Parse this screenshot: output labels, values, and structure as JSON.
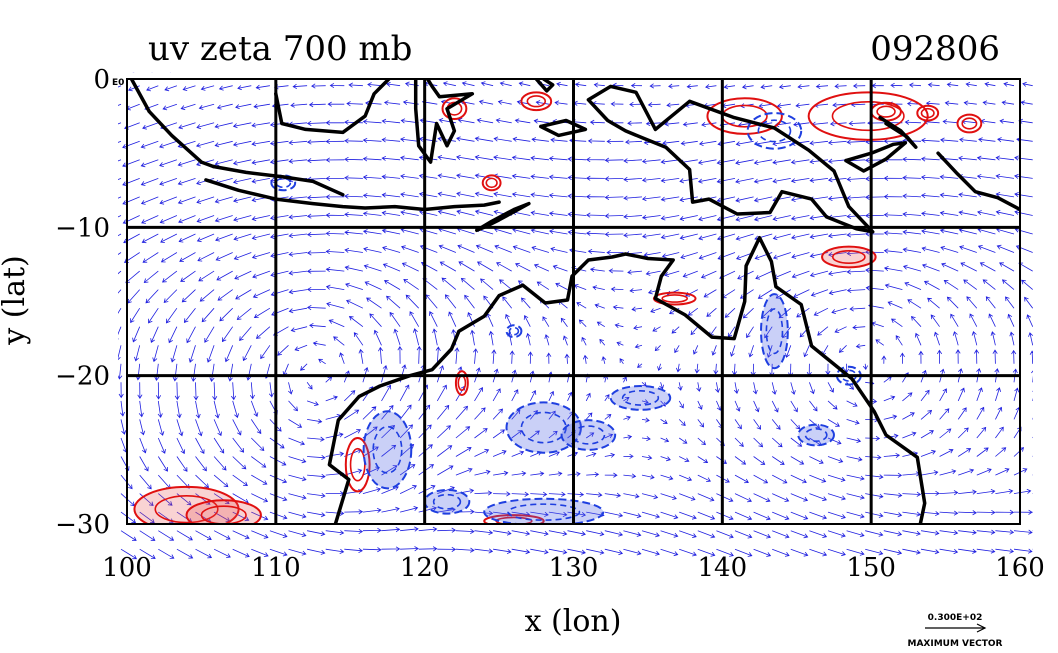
{
  "chart_data": {
    "type": "vector-field with vorticity contours (map)",
    "title": "uv zeta 700 mb",
    "date_label": "092806",
    "xlabel": "x (lon)",
    "ylabel": "y (lat)",
    "xlim": [
      100,
      160
    ],
    "ylim": [
      -30,
      0
    ],
    "x_ticks": [
      100,
      110,
      120,
      130,
      140,
      150,
      160
    ],
    "x_tick_labels": [
      "100",
      "110",
      "120",
      "130",
      "140",
      "150",
      "160"
    ],
    "y_ticks": [
      0,
      -10,
      -20,
      -30
    ],
    "y_tick_labels": [
      "0",
      "−10",
      "−20",
      "−30"
    ],
    "corner_label": "E0",
    "grid": true,
    "reference_vector": {
      "value_label": "0.300E+02",
      "caption": "MAXIMUM VECTOR"
    },
    "colors": {
      "vectors": "#1f1fe0",
      "positive_vorticity": "#e01010",
      "negative_vorticity": "#1f3fe0",
      "coastline": "#000000",
      "grid": "#000000"
    },
    "coastline_australia": [
      [
        114.0,
        -30.0
      ],
      [
        114.9,
        -27.0
      ],
      [
        113.6,
        -26.0
      ],
      [
        114.2,
        -23.0
      ],
      [
        115.6,
        -21.4
      ],
      [
        117.0,
        -20.7
      ],
      [
        119.0,
        -20.0
      ],
      [
        120.5,
        -19.6
      ],
      [
        121.8,
        -18.2
      ],
      [
        122.3,
        -17.0
      ],
      [
        124.0,
        -16.0
      ],
      [
        125.0,
        -14.6
      ],
      [
        126.6,
        -13.9
      ],
      [
        128.1,
        -15.1
      ],
      [
        129.6,
        -14.9
      ],
      [
        129.9,
        -13.3
      ],
      [
        131.0,
        -12.2
      ],
      [
        132.6,
        -12.0
      ],
      [
        133.5,
        -11.8
      ],
      [
        135.0,
        -12.1
      ],
      [
        136.7,
        -12.2
      ],
      [
        135.9,
        -13.3
      ],
      [
        135.5,
        -14.8
      ],
      [
        137.5,
        -15.9
      ],
      [
        139.3,
        -17.4
      ],
      [
        140.8,
        -17.5
      ],
      [
        141.5,
        -15.0
      ],
      [
        141.6,
        -12.6
      ],
      [
        142.5,
        -10.7
      ],
      [
        143.3,
        -12.3
      ],
      [
        143.6,
        -14.0
      ],
      [
        145.3,
        -15.2
      ],
      [
        146.0,
        -18.0
      ],
      [
        148.7,
        -20.2
      ],
      [
        150.2,
        -22.4
      ],
      [
        151.0,
        -24.0
      ],
      [
        153.1,
        -25.5
      ],
      [
        153.6,
        -28.6
      ],
      [
        153.3,
        -30.0
      ]
    ],
    "coastline_new_guinea": [
      [
        131.0,
        -1.4
      ],
      [
        132.5,
        -0.5
      ],
      [
        134.2,
        -0.9
      ],
      [
        135.5,
        -3.4
      ],
      [
        137.8,
        -1.5
      ],
      [
        140.8,
        -2.6
      ],
      [
        143.5,
        -3.3
      ],
      [
        145.8,
        -4.8
      ],
      [
        147.5,
        -6.2
      ],
      [
        148.5,
        -8.6
      ],
      [
        150.1,
        -10.3
      ],
      [
        149.0,
        -10.1
      ],
      [
        147.0,
        -9.3
      ],
      [
        146.0,
        -8.1
      ],
      [
        144.0,
        -7.6
      ],
      [
        143.2,
        -9.0
      ],
      [
        141.0,
        -9.1
      ],
      [
        139.1,
        -8.1
      ],
      [
        138.0,
        -8.3
      ],
      [
        137.8,
        -6.1
      ],
      [
        136.2,
        -4.6
      ],
      [
        134.7,
        -4.0
      ],
      [
        133.5,
        -3.5
      ],
      [
        132.3,
        -2.8
      ],
      [
        131.0,
        -1.4
      ]
    ],
    "coastline_sumatra": [
      [
        100.3,
        0.0
      ],
      [
        101.5,
        -2.2
      ],
      [
        103.0,
        -3.8
      ],
      [
        105.0,
        -5.6
      ],
      [
        105.8,
        -5.9
      ]
    ],
    "coastline_java_lesser_sunda": [
      [
        105.3,
        -6.8
      ],
      [
        107.5,
        -7.5
      ],
      [
        110.0,
        -8.1
      ],
      [
        112.5,
        -8.4
      ],
      [
        114.5,
        -8.6
      ],
      [
        116.0,
        -8.7
      ],
      [
        118.0,
        -8.6
      ],
      [
        120.0,
        -8.8
      ],
      [
        122.0,
        -8.6
      ],
      [
        124.0,
        -8.5
      ],
      [
        125.0,
        -8.3
      ]
    ],
    "coastline_java_north": [
      [
        105.8,
        -5.9
      ],
      [
        108.0,
        -6.3
      ],
      [
        110.5,
        -6.6
      ],
      [
        112.5,
        -6.9
      ],
      [
        114.5,
        -7.8
      ]
    ],
    "coastline_borneo": [
      [
        110.0,
        -1.0
      ],
      [
        110.4,
        -3.0
      ],
      [
        112.0,
        -3.4
      ],
      [
        114.5,
        -3.6
      ],
      [
        116.0,
        -2.5
      ],
      [
        116.6,
        -1.0
      ],
      [
        117.6,
        0.0
      ]
    ],
    "coastline_sulawesi": [
      [
        119.4,
        0.0
      ],
      [
        119.4,
        -2.0
      ],
      [
        119.6,
        -4.5
      ],
      [
        120.4,
        -5.6
      ],
      [
        120.8,
        -3.0
      ],
      [
        121.5,
        -4.5
      ],
      [
        122.0,
        -3.5
      ],
      [
        121.5,
        -2.0
      ],
      [
        123.2,
        -1.0
      ],
      [
        121.0,
        -1.2
      ],
      [
        120.5,
        -0.5
      ],
      [
        120.2,
        0.0
      ]
    ],
    "coastline_timor": [
      [
        123.5,
        -10.2
      ],
      [
        124.5,
        -9.6
      ],
      [
        126.0,
        -8.8
      ],
      [
        127.0,
        -8.4
      ],
      [
        125.0,
        -9.5
      ],
      [
        124.0,
        -10.0
      ],
      [
        123.5,
        -10.2
      ]
    ],
    "coastline_seram": [
      [
        127.8,
        -3.2
      ],
      [
        129.5,
        -2.8
      ],
      [
        130.8,
        -3.4
      ],
      [
        129.0,
        -3.8
      ],
      [
        127.8,
        -3.2
      ]
    ],
    "coastline_halmahera": [
      [
        127.5,
        0.0
      ],
      [
        128.2,
        -0.8
      ],
      [
        128.6,
        -0.4
      ],
      [
        128.0,
        0.0
      ]
    ],
    "coastline_new_britain": [
      [
        148.3,
        -5.5
      ],
      [
        150.0,
        -5.0
      ],
      [
        151.5,
        -4.4
      ],
      [
        152.3,
        -4.3
      ],
      [
        151.0,
        -5.4
      ],
      [
        149.5,
        -6.2
      ],
      [
        148.3,
        -5.5
      ]
    ],
    "coastline_new_ireland": [
      [
        150.6,
        -2.6
      ],
      [
        152.0,
        -3.5
      ],
      [
        153.0,
        -4.6
      ],
      [
        152.4,
        -3.9
      ],
      [
        151.0,
        -3.0
      ]
    ],
    "coastline_solomons": [
      [
        154.5,
        -5.0
      ],
      [
        155.8,
        -6.4
      ],
      [
        157.0,
        -7.6
      ],
      [
        158.5,
        -8.0
      ],
      [
        160.0,
        -8.8
      ]
    ],
    "positive_vorticity_regions": [
      {
        "center": [
          104.0,
          -29.0
        ],
        "radii": [
          3.5,
          1.5
        ],
        "shaded": true
      },
      {
        "center": [
          106.5,
          -29.4
        ],
        "radii": [
          2.5,
          1.0
        ],
        "shaded": true
      },
      {
        "center": [
          149.8,
          -2.5
        ],
        "radii": [
          4.0,
          1.6
        ],
        "shaded": false
      },
      {
        "center": [
          141.5,
          -2.5
        ],
        "radii": [
          2.5,
          1.2
        ],
        "shaded": false
      },
      {
        "center": [
          151.0,
          -2.2
        ],
        "radii": [
          1.0,
          0.6
        ],
        "shaded": false
      },
      {
        "center": [
          156.6,
          -3.0
        ],
        "radii": [
          0.8,
          0.6
        ],
        "shaded": false
      },
      {
        "center": [
          153.8,
          -2.3
        ],
        "radii": [
          0.7,
          0.5
        ],
        "shaded": false
      },
      {
        "center": [
          148.5,
          -12.0
        ],
        "radii": [
          1.8,
          0.7
        ],
        "shaded": true
      },
      {
        "center": [
          136.8,
          -14.8
        ],
        "radii": [
          1.4,
          0.4
        ],
        "shaded": false
      },
      {
        "center": [
          115.5,
          -26.0
        ],
        "radii": [
          0.8,
          1.8
        ],
        "shaded": false
      },
      {
        "center": [
          126.0,
          -29.8
        ],
        "radii": [
          2.0,
          0.4
        ],
        "shaded": false
      },
      {
        "center": [
          127.5,
          -1.5
        ],
        "radii": [
          1.0,
          0.6
        ],
        "shaded": false
      },
      {
        "center": [
          122.0,
          -2.0
        ],
        "radii": [
          0.8,
          0.7
        ],
        "shaded": false
      },
      {
        "center": [
          124.5,
          -7.0
        ],
        "radii": [
          0.6,
          0.5
        ],
        "shaded": false
      },
      {
        "center": [
          122.5,
          -20.5
        ],
        "radii": [
          0.4,
          0.8
        ],
        "shaded": false
      }
    ],
    "negative_vorticity_regions": [
      {
        "center": [
          128.0,
          -23.5
        ],
        "radii": [
          2.5,
          1.7
        ],
        "shaded": true
      },
      {
        "center": [
          131.0,
          -24.0
        ],
        "radii": [
          1.8,
          1.0
        ],
        "shaded": true
      },
      {
        "center": [
          134.5,
          -21.5
        ],
        "radii": [
          2.0,
          0.8
        ],
        "shaded": true
      },
      {
        "center": [
          128.0,
          -29.2
        ],
        "radii": [
          4.0,
          0.9
        ],
        "shaded": true
      },
      {
        "center": [
          117.5,
          -25.0
        ],
        "radii": [
          1.6,
          2.6
        ],
        "shaded": true
      },
      {
        "center": [
          121.5,
          -28.5
        ],
        "radii": [
          1.5,
          0.8
        ],
        "shaded": true
      },
      {
        "center": [
          143.5,
          -17.0
        ],
        "radii": [
          0.9,
          2.5
        ],
        "shaded": true
      },
      {
        "center": [
          146.3,
          -24.0
        ],
        "radii": [
          1.2,
          0.7
        ],
        "shaded": true
      },
      {
        "center": [
          148.5,
          -20.0
        ],
        "radii": [
          0.8,
          0.6
        ],
        "shaded": false
      },
      {
        "center": [
          143.5,
          -3.5
        ],
        "radii": [
          1.8,
          1.2
        ],
        "shaded": false
      },
      {
        "center": [
          126.0,
          -17.0
        ],
        "radii": [
          0.5,
          0.4
        ],
        "shaded": false
      },
      {
        "center": [
          110.5,
          -7.0
        ],
        "radii": [
          0.8,
          0.5
        ],
        "shaded": false
      }
    ]
  }
}
